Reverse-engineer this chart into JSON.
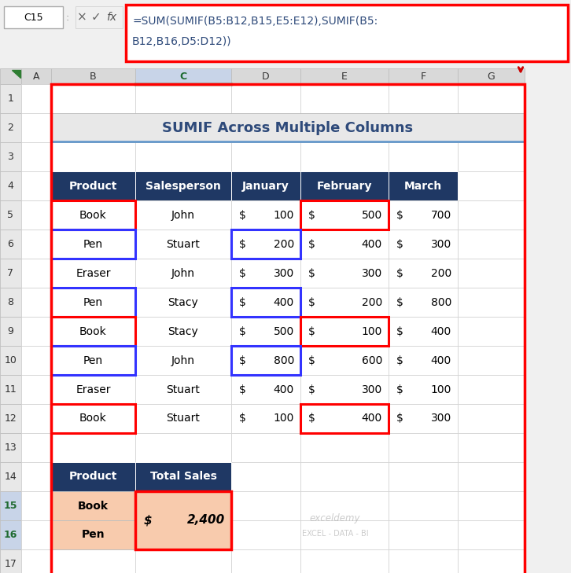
{
  "title": "SUMIF Across Multiple Columns",
  "formula_line1": "=SUM(SUMIF(B5:B12,B15,E5:E12),SUMIF(B5:",
  "formula_line2": "B12,B16,D5:D12))",
  "cell_ref": "C15",
  "col_headers": [
    "A",
    "B",
    "C",
    "D",
    "E",
    "F",
    "G"
  ],
  "row_numbers": [
    "1",
    "2",
    "3",
    "4",
    "5",
    "6",
    "7",
    "8",
    "9",
    "10",
    "11",
    "12",
    "13",
    "14",
    "15",
    "16",
    "17"
  ],
  "main_table_data": [
    [
      "Book",
      "John",
      "100",
      "500",
      "700"
    ],
    [
      "Pen",
      "Stuart",
      "200",
      "400",
      "300"
    ],
    [
      "Eraser",
      "John",
      "300",
      "300",
      "200"
    ],
    [
      "Pen",
      "Stacy",
      "400",
      "200",
      "800"
    ],
    [
      "Book",
      "Stacy",
      "500",
      "100",
      "400"
    ],
    [
      "Pen",
      "John",
      "800",
      "600",
      "400"
    ],
    [
      "Eraser",
      "Stuart",
      "400",
      "300",
      "100"
    ],
    [
      "Book",
      "Stuart",
      "100",
      "400",
      "300"
    ]
  ],
  "header_bg": "#1F3864",
  "header_fg": "#FFFFFF",
  "title_bg": "#E8E8E8",
  "title_fg": "#2E4A7A",
  "cell_bg_white": "#FFFFFF",
  "summary_cell_bg": "#F8CBAD",
  "formula_bar_border": "#FF0000",
  "red_border_color": "#FF0000",
  "blue_border_color": "#3333FF",
  "arrow_color": "#CC0000",
  "col_header_bg": "#D9D9D9",
  "row_header_bg": "#E8E8E8",
  "selected_col_bg": "#C8D4E8",
  "selected_col_fg": "#1F6B31",
  "overall_bg": "#F0F0F0",
  "watermark1": "exceldemy",
  "watermark2": "EXCEL - DATA - BI"
}
